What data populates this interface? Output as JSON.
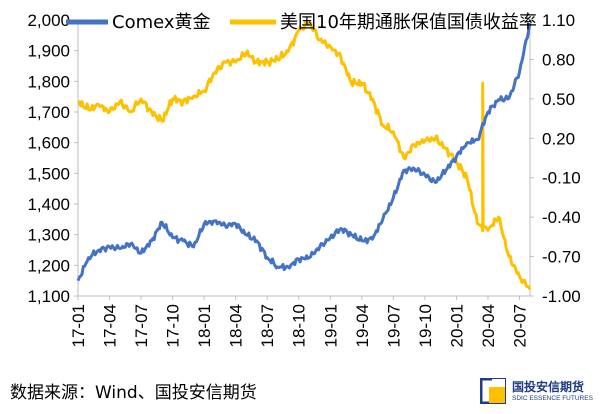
{
  "chart_data": {
    "type": "line",
    "legend_position": "top",
    "grid": false,
    "x_tick_labels": [
      "17-01",
      "17-04",
      "17-07",
      "17-10",
      "18-01",
      "18-04",
      "18-07",
      "18-10",
      "19-01",
      "19-04",
      "19-07",
      "19-10",
      "20-01",
      "20-04",
      "20-07"
    ],
    "x_range": [
      "2017-01",
      "2020-08"
    ],
    "left_axis": {
      "ylim": [
        1100,
        2000
      ],
      "tick_labels": [
        "1,100",
        "1,200",
        "1,300",
        "1,400",
        "1,500",
        "1,600",
        "1,700",
        "1,800",
        "1,900",
        "2,000"
      ]
    },
    "right_axis": {
      "ylim": [
        -1.0,
        1.1
      ],
      "tick_labels": [
        "-1.00",
        "-0.70",
        "-0.40",
        "-0.10",
        "0.20",
        "0.50",
        "0.80",
        "1.10"
      ]
    },
    "series": [
      {
        "name": "Comex黄金",
        "axis": "left",
        "color": "#4472c4",
        "points": [
          [
            "2017-01",
            1150
          ],
          [
            "2017-02",
            1225
          ],
          [
            "2017-03",
            1250
          ],
          [
            "2017-04",
            1260
          ],
          [
            "2017-05",
            1255
          ],
          [
            "2017-06",
            1270
          ],
          [
            "2017-07",
            1240
          ],
          [
            "2017-08",
            1280
          ],
          [
            "2017-09",
            1340
          ],
          [
            "2017-10",
            1290
          ],
          [
            "2017-11",
            1280
          ],
          [
            "2017-12",
            1260
          ],
          [
            "2018-01",
            1335
          ],
          [
            "2018-02",
            1345
          ],
          [
            "2018-03",
            1330
          ],
          [
            "2018-04",
            1335
          ],
          [
            "2018-05",
            1300
          ],
          [
            "2018-06",
            1280
          ],
          [
            "2018-07",
            1225
          ],
          [
            "2018-08",
            1195
          ],
          [
            "2018-09",
            1195
          ],
          [
            "2018-10",
            1220
          ],
          [
            "2018-11",
            1225
          ],
          [
            "2018-12",
            1260
          ],
          [
            "2019-01",
            1290
          ],
          [
            "2019-02",
            1320
          ],
          [
            "2019-03",
            1300
          ],
          [
            "2019-04",
            1280
          ],
          [
            "2019-05",
            1285
          ],
          [
            "2019-06",
            1350
          ],
          [
            "2019-07",
            1420
          ],
          [
            "2019-08",
            1510
          ],
          [
            "2019-09",
            1515
          ],
          [
            "2019-10",
            1495
          ],
          [
            "2019-11",
            1470
          ],
          [
            "2019-12",
            1510
          ],
          [
            "2020-01",
            1555
          ],
          [
            "2020-02",
            1600
          ],
          [
            "2020-03",
            1610
          ],
          [
            "2020-04",
            1700
          ],
          [
            "2020-05",
            1740
          ],
          [
            "2020-06",
            1745
          ],
          [
            "2020-07",
            1830
          ],
          [
            "2020-08",
            1990
          ]
        ]
      },
      {
        "name": "美国10年期通胀保值国债收益率",
        "axis": "right",
        "color": "#ffc000",
        "points": [
          [
            "2017-01",
            0.48
          ],
          [
            "2017-02",
            0.42
          ],
          [
            "2017-03",
            0.45
          ],
          [
            "2017-04",
            0.4
          ],
          [
            "2017-05",
            0.48
          ],
          [
            "2017-06",
            0.4
          ],
          [
            "2017-07",
            0.5
          ],
          [
            "2017-08",
            0.4
          ],
          [
            "2017-09",
            0.33
          ],
          [
            "2017-10",
            0.5
          ],
          [
            "2017-11",
            0.48
          ],
          [
            "2017-12",
            0.52
          ],
          [
            "2018-01",
            0.56
          ],
          [
            "2018-02",
            0.7
          ],
          [
            "2018-03",
            0.78
          ],
          [
            "2018-04",
            0.78
          ],
          [
            "2018-05",
            0.85
          ],
          [
            "2018-06",
            0.78
          ],
          [
            "2018-07",
            0.78
          ],
          [
            "2018-08",
            0.8
          ],
          [
            "2018-09",
            0.86
          ],
          [
            "2018-10",
            1.02
          ],
          [
            "2018-11",
            1.08
          ],
          [
            "2018-12",
            0.95
          ],
          [
            "2019-01",
            0.9
          ],
          [
            "2019-02",
            0.82
          ],
          [
            "2019-03",
            0.62
          ],
          [
            "2019-04",
            0.62
          ],
          [
            "2019-05",
            0.5
          ],
          [
            "2019-06",
            0.3
          ],
          [
            "2019-07",
            0.25
          ],
          [
            "2019-08",
            0.05
          ],
          [
            "2019-09",
            0.15
          ],
          [
            "2019-10",
            0.18
          ],
          [
            "2019-11",
            0.2
          ],
          [
            "2019-12",
            0.12
          ],
          [
            "2020-01",
            0.02
          ],
          [
            "2020-02",
            -0.1
          ],
          [
            "2020-03",
            -0.45
          ],
          [
            "2020-04",
            -0.5
          ],
          [
            "2020-05",
            -0.4
          ],
          [
            "2020-06",
            -0.7
          ],
          [
            "2020-07",
            -0.85
          ],
          [
            "2020-08",
            -0.95
          ]
        ]
      }
    ],
    "annotation_spike": {
      "date": "2020-03",
      "peak": 0.62
    }
  },
  "footer": {
    "source": "数据来源：Wind、国投安信期货"
  },
  "logo": {
    "name_cn": "国投安信期货",
    "name_en": "SDIC ESSENCE FUTURES",
    "color": "#1f3c88"
  }
}
